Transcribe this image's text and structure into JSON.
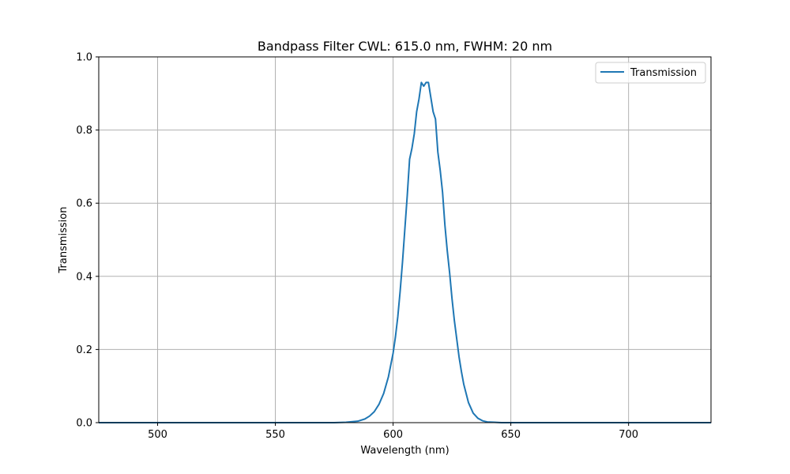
{
  "chart_data": {
    "type": "line",
    "title": "Bandpass Filter CWL: 615.0 nm, FWHM: 20 nm",
    "xlabel": "Wavelength (nm)",
    "ylabel": "Transmission",
    "xlim": [
      475,
      735
    ],
    "ylim": [
      0,
      1
    ],
    "xticks": [
      500,
      550,
      600,
      650,
      700
    ],
    "yticks": [
      0.0,
      0.2,
      0.4,
      0.6,
      0.8,
      1.0
    ],
    "xtick_labels": [
      "500",
      "550",
      "600",
      "650",
      "700"
    ],
    "ytick_labels": [
      "0.0",
      "0.2",
      "0.4",
      "0.6",
      "0.8",
      "1.0"
    ],
    "grid": true,
    "legend_position": "top-right",
    "series": [
      {
        "name": "Transmission",
        "color": "#1f77b4",
        "x": [
          475,
          560,
          575,
          580,
          585,
          588,
          590,
          592,
          594,
          596,
          598,
          600,
          601,
          602,
          603,
          604,
          605,
          606,
          607,
          608,
          609,
          610,
          611,
          612,
          613,
          614,
          615,
          616,
          617,
          618,
          619,
          620,
          621,
          622,
          623,
          624,
          625,
          626,
          627,
          628,
          629,
          630,
          632,
          634,
          636,
          638,
          640,
          643,
          646,
          650,
          660,
          700,
          735
        ],
        "y": [
          0.0,
          0.0,
          0.0,
          0.001,
          0.004,
          0.01,
          0.018,
          0.03,
          0.05,
          0.08,
          0.125,
          0.19,
          0.235,
          0.29,
          0.36,
          0.44,
          0.53,
          0.62,
          0.72,
          0.75,
          0.79,
          0.85,
          0.885,
          0.93,
          0.92,
          0.93,
          0.93,
          0.89,
          0.85,
          0.83,
          0.74,
          0.69,
          0.63,
          0.54,
          0.47,
          0.41,
          0.34,
          0.28,
          0.23,
          0.18,
          0.14,
          0.105,
          0.055,
          0.026,
          0.012,
          0.005,
          0.002,
          0.001,
          0.0,
          0.0,
          0.0,
          0.0,
          0.0
        ]
      }
    ]
  }
}
